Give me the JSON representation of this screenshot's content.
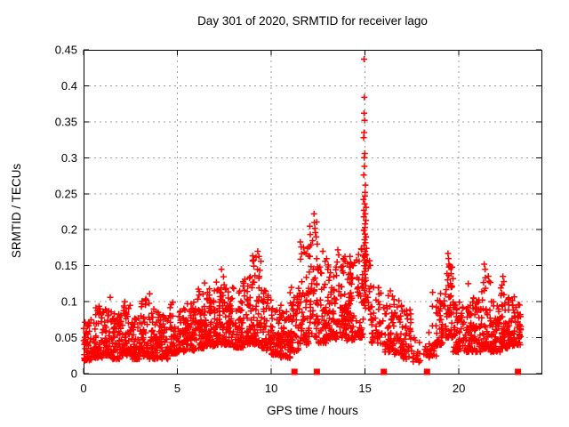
{
  "window": {
    "background": "#ffffff"
  },
  "chart_data": {
    "type": "scatter",
    "title": "Day 301 of 2020, SRMTID for receiver lago",
    "xlabel": "GPS time / hours",
    "ylabel": "SRMTID / TECUs",
    "xlim": [
      0,
      24.4
    ],
    "ylim": [
      0,
      0.45
    ],
    "xticks": [
      0,
      5,
      10,
      15,
      20
    ],
    "xtick_labels": [
      "0",
      "5",
      "10",
      "15",
      "20"
    ],
    "yticks": [
      0,
      0.05,
      0.1,
      0.15,
      0.2,
      0.25,
      0.3,
      0.35,
      0.4,
      0.45
    ],
    "ytick_labels": [
      "0",
      "0.05",
      "0.1",
      "0.15",
      "0.2",
      "0.25",
      "0.3",
      "0.35",
      "0.4",
      "0.45"
    ],
    "grid": true,
    "legend": "none",
    "marker": "plus-cross",
    "marker_color": "#ff0000",
    "grid_color": "#9a9a9a",
    "border_color": "#000000",
    "seed": 301,
    "zero_value_markers_x": [
      11.24,
      12.43,
      16.0,
      18.3,
      23.15
    ],
    "spike_points": [
      [
        14.96,
        0.437
      ],
      [
        14.98,
        0.384
      ],
      [
        14.94,
        0.362
      ],
      [
        15.0,
        0.352
      ],
      [
        14.97,
        0.335
      ],
      [
        14.93,
        0.328
      ],
      [
        15.0,
        0.306
      ],
      [
        14.96,
        0.3
      ],
      [
        14.99,
        0.288
      ],
      [
        14.95,
        0.276
      ],
      [
        15.02,
        0.262
      ],
      [
        14.97,
        0.252
      ],
      [
        15.0,
        0.247
      ],
      [
        14.94,
        0.242
      ],
      [
        14.98,
        0.236
      ],
      [
        15.03,
        0.231
      ],
      [
        14.96,
        0.227
      ],
      [
        15.0,
        0.222
      ],
      [
        14.93,
        0.218
      ],
      [
        15.05,
        0.213
      ],
      [
        14.98,
        0.208
      ],
      [
        15.01,
        0.203
      ],
      [
        14.95,
        0.199
      ],
      [
        15.0,
        0.194
      ],
      [
        15.04,
        0.19
      ],
      [
        14.97,
        0.186
      ],
      [
        15.0,
        0.182
      ],
      [
        14.93,
        0.178
      ],
      [
        15.06,
        0.174
      ],
      [
        14.99,
        0.17
      ],
      [
        15.02,
        0.166
      ],
      [
        14.96,
        0.162
      ],
      [
        15.0,
        0.158
      ],
      [
        15.05,
        0.154
      ],
      [
        14.98,
        0.15
      ],
      [
        15.02,
        0.146
      ],
      [
        14.95,
        0.142
      ],
      [
        15.0,
        0.138
      ],
      [
        15.03,
        0.133
      ],
      [
        14.97,
        0.128
      ],
      [
        15.01,
        0.122
      ],
      [
        14.94,
        0.116
      ],
      [
        15.0,
        0.11
      ],
      [
        15.04,
        0.104
      ],
      [
        14.98,
        0.098
      ]
    ],
    "feature_points": [
      [
        1.42,
        0.106
      ],
      [
        2.2,
        0.1
      ],
      [
        3.52,
        0.111
      ],
      [
        4.75,
        0.099
      ],
      [
        6.45,
        0.126
      ],
      [
        7.35,
        0.145
      ],
      [
        8.6,
        0.131
      ],
      [
        9.28,
        0.17
      ],
      [
        9.35,
        0.163
      ],
      [
        9.45,
        0.156
      ],
      [
        11.55,
        0.183
      ],
      [
        11.6,
        0.176
      ],
      [
        12.28,
        0.222
      ],
      [
        12.3,
        0.21
      ],
      [
        12.33,
        0.202
      ],
      [
        12.35,
        0.196
      ],
      [
        12.4,
        0.19
      ],
      [
        12.45,
        0.18
      ],
      [
        12.75,
        0.17
      ],
      [
        13.55,
        0.172
      ],
      [
        13.6,
        0.165
      ],
      [
        13.85,
        0.16
      ],
      [
        14.2,
        0.163
      ],
      [
        14.55,
        0.158
      ],
      [
        16.35,
        0.115
      ],
      [
        18.6,
        0.113
      ],
      [
        19.42,
        0.167
      ],
      [
        19.45,
        0.16
      ],
      [
        19.47,
        0.152
      ],
      [
        20.5,
        0.125
      ],
      [
        21.35,
        0.152
      ],
      [
        21.4,
        0.145
      ],
      [
        22.35,
        0.135
      ],
      [
        22.4,
        0.128
      ]
    ],
    "density_bins": [
      [
        0.0,
        0.5,
        55,
        0.018,
        0.075
      ],
      [
        0.5,
        1.0,
        55,
        0.022,
        0.094
      ],
      [
        1.0,
        1.5,
        55,
        0.025,
        0.09
      ],
      [
        1.5,
        2.0,
        55,
        0.02,
        0.085
      ],
      [
        2.0,
        2.5,
        55,
        0.025,
        0.098
      ],
      [
        2.5,
        3.0,
        55,
        0.02,
        0.082
      ],
      [
        3.0,
        3.5,
        55,
        0.024,
        0.105
      ],
      [
        3.5,
        4.0,
        55,
        0.02,
        0.09
      ],
      [
        4.0,
        4.5,
        55,
        0.02,
        0.086
      ],
      [
        4.5,
        5.0,
        55,
        0.028,
        0.098
      ],
      [
        5.0,
        5.5,
        55,
        0.03,
        0.092
      ],
      [
        5.5,
        6.0,
        55,
        0.032,
        0.1
      ],
      [
        6.0,
        6.5,
        58,
        0.035,
        0.12
      ],
      [
        6.5,
        7.0,
        58,
        0.038,
        0.118
      ],
      [
        7.0,
        7.5,
        58,
        0.04,
        0.138
      ],
      [
        7.5,
        8.0,
        58,
        0.04,
        0.12
      ],
      [
        8.0,
        8.5,
        58,
        0.036,
        0.128
      ],
      [
        8.5,
        9.0,
        58,
        0.04,
        0.138
      ],
      [
        9.0,
        9.5,
        58,
        0.04,
        0.165
      ],
      [
        9.5,
        10.0,
        55,
        0.032,
        0.128
      ],
      [
        10.0,
        10.5,
        55,
        0.026,
        0.092
      ],
      [
        10.5,
        11.0,
        55,
        0.022,
        0.1
      ],
      [
        11.0,
        11.5,
        50,
        0.03,
        0.12
      ],
      [
        11.5,
        12.0,
        50,
        0.04,
        0.178
      ],
      [
        12.0,
        12.5,
        52,
        0.05,
        0.215
      ],
      [
        12.5,
        13.0,
        52,
        0.042,
        0.168
      ],
      [
        13.0,
        13.5,
        58,
        0.048,
        0.152
      ],
      [
        13.5,
        14.0,
        58,
        0.05,
        0.168
      ],
      [
        14.0,
        14.5,
        58,
        0.046,
        0.158
      ],
      [
        14.5,
        14.9,
        48,
        0.05,
        0.175
      ],
      [
        14.9,
        15.3,
        26,
        0.09,
        0.175
      ],
      [
        15.3,
        16.0,
        46,
        0.04,
        0.12
      ],
      [
        16.0,
        16.5,
        45,
        0.03,
        0.112
      ],
      [
        16.5,
        17.0,
        45,
        0.026,
        0.104
      ],
      [
        17.0,
        17.5,
        40,
        0.02,
        0.09
      ],
      [
        17.5,
        18.0,
        14,
        0.016,
        0.062
      ],
      [
        18.0,
        18.35,
        8,
        0.02,
        0.052
      ],
      [
        18.35,
        18.8,
        24,
        0.022,
        0.11
      ],
      [
        18.8,
        19.3,
        42,
        0.04,
        0.118
      ],
      [
        19.3,
        19.7,
        44,
        0.05,
        0.158
      ],
      [
        19.7,
        20.2,
        50,
        0.03,
        0.1
      ],
      [
        20.2,
        20.7,
        52,
        0.03,
        0.096
      ],
      [
        20.7,
        21.2,
        52,
        0.03,
        0.108
      ],
      [
        21.2,
        21.7,
        52,
        0.034,
        0.148
      ],
      [
        21.7,
        22.2,
        52,
        0.03,
        0.1
      ],
      [
        22.2,
        22.6,
        48,
        0.035,
        0.13
      ],
      [
        22.6,
        23.0,
        48,
        0.038,
        0.108
      ],
      [
        23.0,
        23.3,
        32,
        0.04,
        0.098
      ]
    ]
  }
}
